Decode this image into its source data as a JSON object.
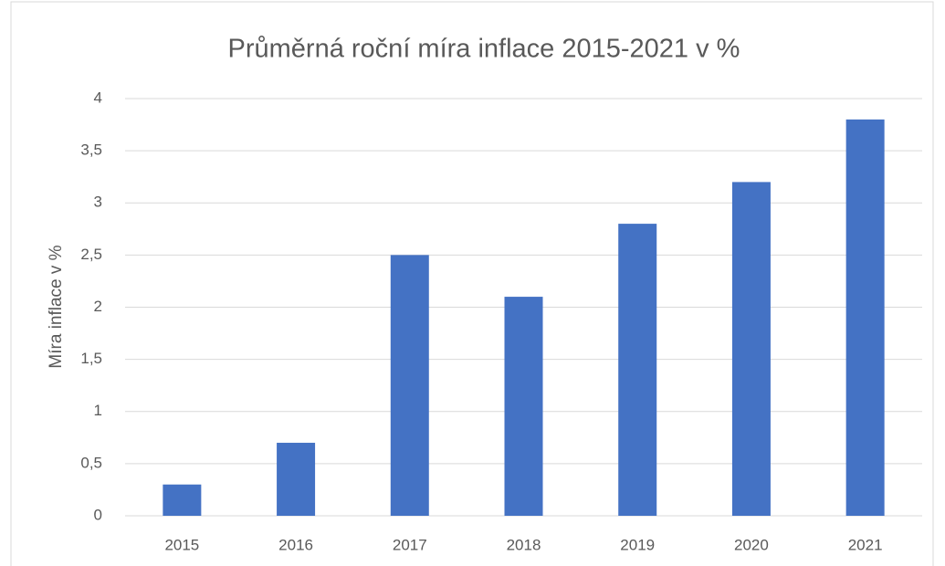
{
  "chart_data": {
    "type": "bar",
    "title": "Průměrná roční míra inflace 2015-2021 v %",
    "y_label": "Míra inflace v %",
    "categories": [
      "2015",
      "2016",
      "2017",
      "2018",
      "2019",
      "2020",
      "2021"
    ],
    "values": [
      0.3,
      0.7,
      2.5,
      2.1,
      2.8,
      3.2,
      3.8
    ],
    "color": "#4472c4",
    "ylim": [
      0,
      4
    ],
    "yticks": [
      0,
      {
        "value": 0.5,
        "label": "0,5"
      },
      1,
      {
        "value": 1.5,
        "label": "1,5"
      },
      2,
      {
        "value": 2.5,
        "label": "2,5"
      },
      3,
      {
        "value": 3.5,
        "label": "3,5"
      },
      4
    ],
    "grid": true
  }
}
